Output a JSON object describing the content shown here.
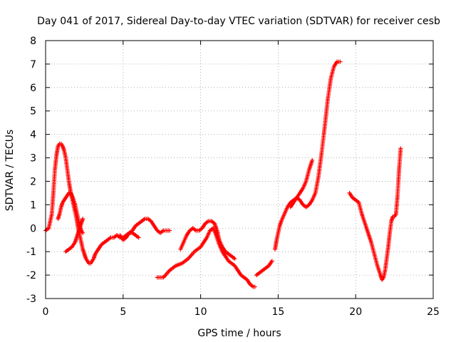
{
  "chart_data": {
    "type": "scatter",
    "title": "Day 041 of 2017, Sidereal Day-to-day VTEC variation (SDTVAR) for receiver cesb",
    "xlabel": "GPS time / hours",
    "ylabel": "SDTVAR / TECUs",
    "xlim": [
      0,
      25
    ],
    "ylim": [
      -3,
      8
    ],
    "x_ticks": [
      0,
      5,
      10,
      15,
      20,
      25
    ],
    "y_ticks": [
      -3,
      -2,
      -1,
      0,
      1,
      2,
      3,
      4,
      5,
      6,
      7,
      8
    ],
    "grid": true,
    "legend": "none",
    "marker": "plus",
    "marker_color": "#ff0000",
    "series": [
      {
        "x": [
          0.0,
          0.2,
          0.4,
          0.5,
          0.6,
          0.7,
          0.8,
          0.9,
          1.0,
          1.1,
          1.2,
          1.3,
          1.4,
          1.5,
          1.6,
          1.7,
          1.8,
          1.9,
          2.0,
          2.1,
          2.2,
          2.3,
          2.4,
          2.5,
          2.6,
          2.7,
          2.8,
          2.9,
          3.0,
          3.1,
          3.2,
          3.4,
          3.6,
          3.8,
          4.0,
          4.2,
          4.4,
          4.6,
          4.8,
          5.0,
          5.2,
          5.4,
          5.6,
          5.8,
          6.0
        ],
        "y": [
          -0.1,
          0.0,
          0.6,
          1.5,
          2.5,
          3.1,
          3.5,
          3.6,
          3.6,
          3.5,
          3.3,
          3.0,
          2.5,
          2.0,
          1.6,
          1.3,
          1.0,
          0.7,
          0.4,
          0.0,
          -0.3,
          -0.6,
          -0.9,
          -1.1,
          -1.3,
          -1.4,
          -1.5,
          -1.5,
          -1.4,
          -1.3,
          -1.1,
          -0.9,
          -0.7,
          -0.6,
          -0.5,
          -0.4,
          -0.4,
          -0.3,
          -0.4,
          -0.4,
          -0.3,
          -0.2,
          -0.2,
          -0.3,
          -0.4
        ]
      },
      {
        "x": [
          0.8,
          0.9,
          1.0,
          1.1,
          1.2,
          1.3,
          1.4,
          1.5,
          1.6,
          1.7,
          1.8,
          1.9,
          2.0,
          2.1,
          2.2,
          2.3,
          2.4
        ],
        "y": [
          0.4,
          0.6,
          0.9,
          1.1,
          1.2,
          1.3,
          1.4,
          1.5,
          1.5,
          1.4,
          1.2,
          1.0,
          0.7,
          0.4,
          0.1,
          -0.1,
          -0.2
        ]
      },
      {
        "x": [
          1.3,
          1.5,
          1.7,
          1.9,
          2.0,
          2.1,
          2.2,
          2.3,
          2.4
        ],
        "y": [
          -1.0,
          -0.9,
          -0.8,
          -0.6,
          -0.4,
          -0.2,
          0.0,
          0.2,
          0.4
        ]
      },
      {
        "x": [
          4.8,
          5.0,
          5.2,
          5.4,
          5.6,
          5.8,
          6.0,
          6.2,
          6.4,
          6.6,
          6.8,
          7.0,
          7.2,
          7.4,
          7.6,
          7.8,
          8.0
        ],
        "y": [
          -0.3,
          -0.5,
          -0.4,
          -0.2,
          -0.1,
          0.1,
          0.2,
          0.3,
          0.4,
          0.4,
          0.3,
          0.1,
          -0.1,
          -0.2,
          -0.1,
          -0.1,
          -0.1
        ]
      },
      {
        "x": [
          7.2,
          7.6,
          8.0,
          8.4,
          8.8,
          9.2,
          9.6,
          10.0,
          10.2,
          10.4,
          10.6,
          10.8,
          11.0,
          11.2,
          11.4,
          11.6,
          11.8,
          12.0,
          12.2,
          12.4,
          12.6,
          12.8,
          13.0,
          13.2,
          13.4,
          13.5
        ],
        "y": [
          -2.1,
          -2.1,
          -1.8,
          -1.6,
          -1.5,
          -1.3,
          -1.0,
          -0.8,
          -0.6,
          -0.4,
          -0.1,
          0.0,
          -0.3,
          -0.7,
          -1.0,
          -1.2,
          -1.4,
          -1.5,
          -1.6,
          -1.8,
          -2.0,
          -2.1,
          -2.2,
          -2.4,
          -2.5,
          -2.5
        ]
      },
      {
        "x": [
          8.7,
          8.9,
          9.1,
          9.3,
          9.5,
          9.7,
          9.9,
          10.1,
          10.3,
          10.5,
          10.7,
          10.9,
          11.0,
          11.1,
          11.2,
          11.4,
          11.6,
          11.8,
          12.0,
          12.2
        ],
        "y": [
          -0.9,
          -0.6,
          -0.3,
          -0.1,
          0.0,
          -0.1,
          -0.1,
          0.0,
          0.2,
          0.3,
          0.3,
          0.2,
          0.0,
          -0.2,
          -0.5,
          -0.8,
          -1.0,
          -1.1,
          -1.2,
          -1.3
        ]
      },
      {
        "x": [
          13.6,
          13.8,
          14.0,
          14.2,
          14.4,
          14.6
        ],
        "y": [
          -2.0,
          -1.9,
          -1.8,
          -1.7,
          -1.6,
          -1.4
        ]
      },
      {
        "x": [
          14.8,
          14.9,
          15.0,
          15.1,
          15.2,
          15.4,
          15.6,
          15.8,
          16.0,
          16.2,
          16.4,
          16.6,
          16.8,
          17.0,
          17.2,
          17.4,
          17.6,
          17.8,
          18.0,
          18.2,
          18.4,
          18.6,
          18.8,
          19.0
        ],
        "y": [
          -0.9,
          -0.5,
          -0.2,
          0.1,
          0.3,
          0.6,
          0.9,
          1.1,
          1.2,
          1.3,
          1.2,
          1.0,
          0.9,
          1.0,
          1.2,
          1.5,
          2.2,
          3.2,
          4.3,
          5.5,
          6.4,
          6.9,
          7.1,
          7.1
        ]
      },
      {
        "x": [
          15.8,
          16.0,
          16.2,
          16.4,
          16.6,
          16.8,
          17.0,
          17.2
        ],
        "y": [
          0.9,
          1.1,
          1.3,
          1.5,
          1.7,
          2.0,
          2.5,
          2.9
        ]
      },
      {
        "x": [
          19.6,
          19.8,
          20.0,
          20.2,
          20.4,
          20.6,
          20.8,
          21.0,
          21.2,
          21.4,
          21.6,
          21.7,
          21.8,
          21.9,
          22.0,
          22.1,
          22.2,
          22.3,
          22.4,
          22.5,
          22.6,
          22.7,
          22.8,
          22.9
        ],
        "y": [
          1.5,
          1.3,
          1.2,
          1.1,
          0.6,
          0.2,
          -0.2,
          -0.6,
          -1.1,
          -1.6,
          -2.0,
          -2.2,
          -2.1,
          -1.8,
          -1.3,
          -0.8,
          -0.2,
          0.3,
          0.5,
          0.5,
          0.6,
          1.4,
          2.5,
          3.4
        ]
      }
    ]
  }
}
